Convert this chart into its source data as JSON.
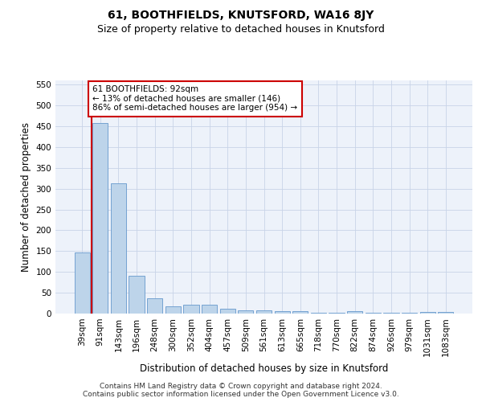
{
  "title": "61, BOOTHFIELDS, KNUTSFORD, WA16 8JY",
  "subtitle": "Size of property relative to detached houses in Knutsford",
  "xlabel": "Distribution of detached houses by size in Knutsford",
  "ylabel": "Number of detached properties",
  "categories": [
    "39sqm",
    "91sqm",
    "143sqm",
    "196sqm",
    "248sqm",
    "300sqm",
    "352sqm",
    "404sqm",
    "457sqm",
    "509sqm",
    "561sqm",
    "613sqm",
    "665sqm",
    "718sqm",
    "770sqm",
    "822sqm",
    "874sqm",
    "926sqm",
    "979sqm",
    "1031sqm",
    "1083sqm"
  ],
  "values": [
    146,
    457,
    312,
    90,
    37,
    18,
    21,
    21,
    11,
    7,
    7,
    5,
    5,
    1,
    1,
    5,
    1,
    1,
    1,
    3,
    3
  ],
  "bar_color": "#bdd4ea",
  "bar_edge_color": "#6699cc",
  "highlight_bar_index": 1,
  "highlight_line_color": "#cc0000",
  "annotation_text": "61 BOOTHFIELDS: 92sqm\n← 13% of detached houses are smaller (146)\n86% of semi-detached houses are larger (954) →",
  "annotation_box_color": "#ffffff",
  "annotation_box_edge": "#cc0000",
  "footer_text": "Contains HM Land Registry data © Crown copyright and database right 2024.\nContains public sector information licensed under the Open Government Licence v3.0.",
  "ylim": [
    0,
    560
  ],
  "yticks": [
    0,
    50,
    100,
    150,
    200,
    250,
    300,
    350,
    400,
    450,
    500,
    550
  ],
  "background_color": "#edf2fa",
  "grid_color": "#c8d4e8",
  "title_fontsize": 10,
  "subtitle_fontsize": 9,
  "axis_label_fontsize": 8.5,
  "tick_fontsize": 7.5,
  "annotation_fontsize": 7.5,
  "footer_fontsize": 6.5
}
